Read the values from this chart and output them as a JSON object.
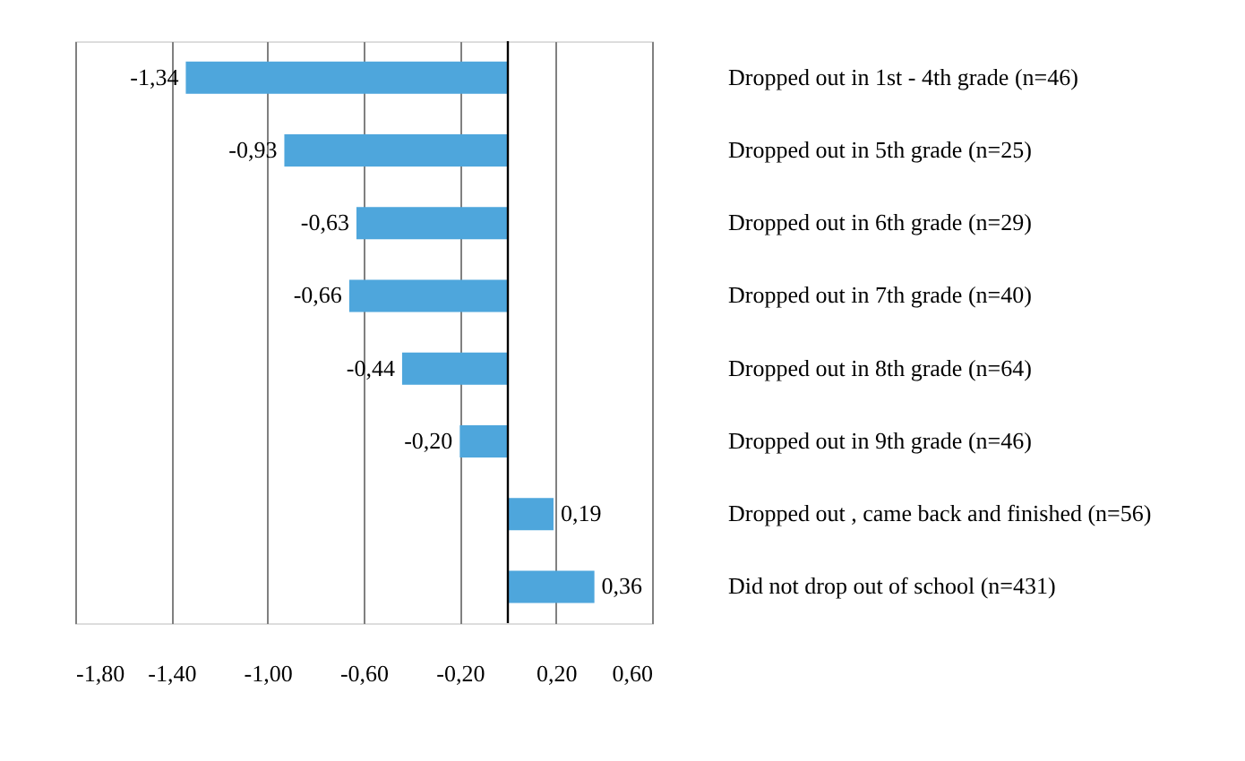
{
  "chart_data": {
    "type": "bar",
    "orientation": "horizontal",
    "categories": [
      "Dropped out in 1st - 4th grade (n=46)",
      "Dropped out in 5th grade (n=25)",
      "Dropped out in 6th grade (n=29)",
      "Dropped out in 7th grade (n=40)",
      "Dropped out in 8th grade (n=64)",
      "Dropped out in 9th grade (n=46)",
      "Dropped out , came back and finished (n=56)",
      "Did not drop out of school (n=431)"
    ],
    "values": [
      -1.34,
      -0.93,
      -0.63,
      -0.66,
      -0.44,
      -0.2,
      0.19,
      0.36
    ],
    "value_labels": [
      "-1,34",
      "-0,93",
      "-0,63",
      "-0,66",
      "-0,44",
      "-0,20",
      "0,19",
      "0,36"
    ],
    "color": "#4ea6dc",
    "xlim": [
      -1.8,
      0.6
    ],
    "xticks": [
      {
        "value": -1.8,
        "label": "-1,80"
      },
      {
        "value": -1.4,
        "label": "-1,40"
      },
      {
        "value": -1.0,
        "label": "-1,00"
      },
      {
        "value": -0.6,
        "label": "-0,60"
      },
      {
        "value": -0.2,
        "label": "-0,20"
      },
      {
        "value": 0.2,
        "label": "0,20"
      },
      {
        "value": 0.6,
        "label": "0,60"
      }
    ],
    "ref_lines": [
      {
        "axis": "x",
        "value": 0,
        "color": "#000000"
      }
    ],
    "grid": "x"
  }
}
